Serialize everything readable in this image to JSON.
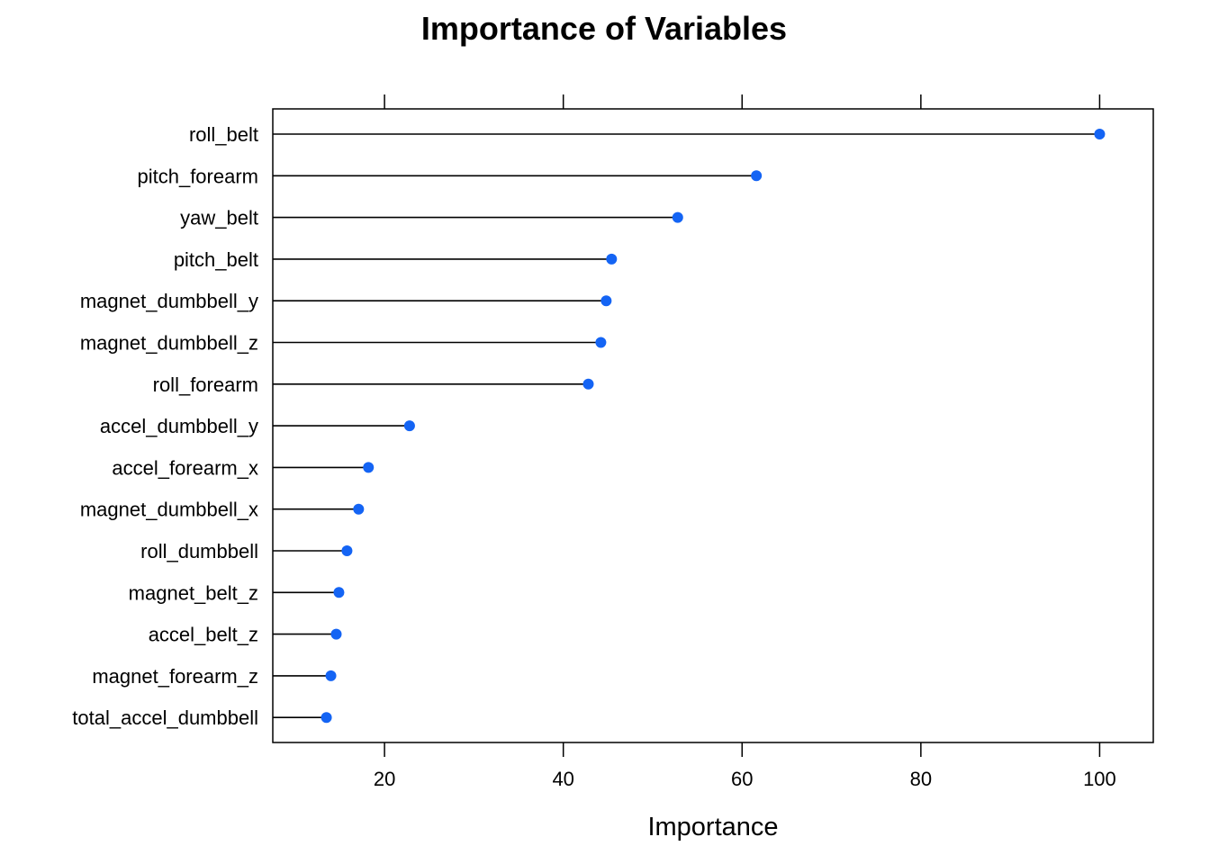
{
  "chart_data": {
    "type": "dotplot",
    "title": "Importance of Variables",
    "xlabel": "Importance",
    "ylabel": "",
    "xlim": [
      7.5,
      106
    ],
    "xticks": [
      20,
      40,
      60,
      80,
      100
    ],
    "point_color": "#1464f4",
    "line_color": "#000000",
    "grid": false,
    "legend": "none",
    "categories": [
      "roll_belt",
      "pitch_forearm",
      "yaw_belt",
      "pitch_belt",
      "magnet_dumbbell_y",
      "magnet_dumbbell_z",
      "roll_forearm",
      "accel_dumbbell_y",
      "accel_forearm_x",
      "magnet_dumbbell_x",
      "roll_dumbbell",
      "magnet_belt_z",
      "accel_belt_z",
      "magnet_forearm_z",
      "total_accel_dumbbell"
    ],
    "values": [
      100.0,
      61.6,
      52.8,
      45.4,
      44.8,
      44.2,
      42.8,
      22.8,
      18.2,
      17.1,
      15.8,
      14.9,
      14.6,
      14.0,
      13.5
    ]
  }
}
